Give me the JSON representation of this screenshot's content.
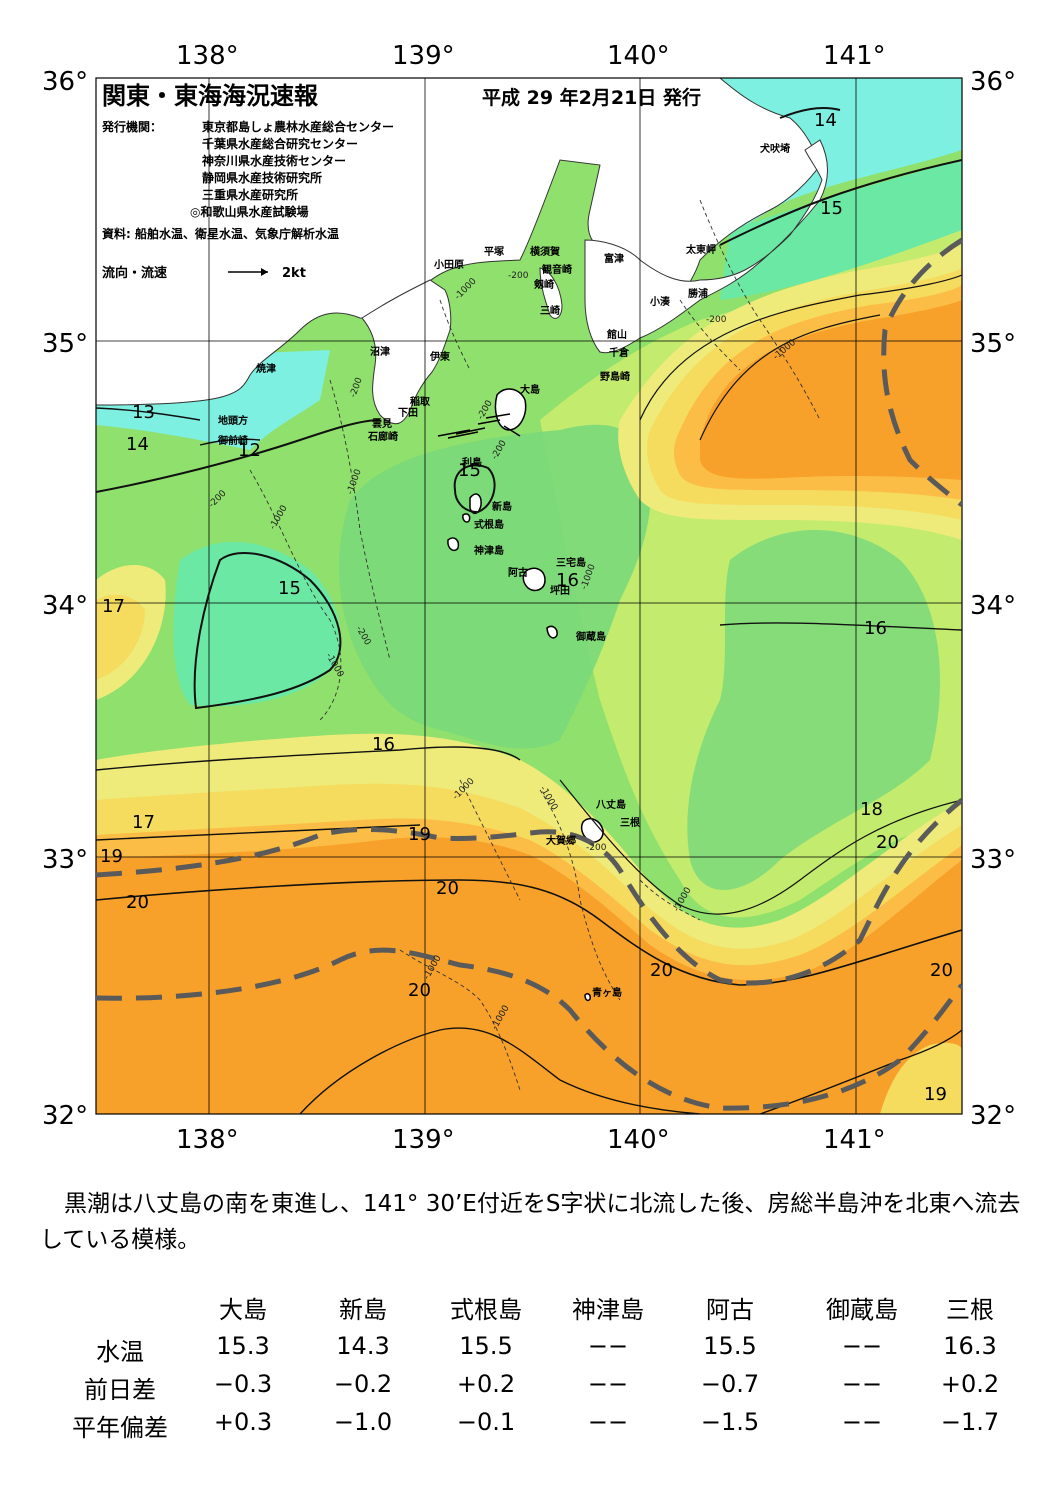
{
  "header": {
    "title": "関東・東海海況速報",
    "date": "平成 29 年2月21日 発行",
    "issuers_label": "発行機関：",
    "issuers": [
      "東京都島しょ農林水産総合センター",
      "千葉県水産総合研究センター",
      "神奈川県水産技術センター",
      "静岡県水産技術研究所",
      "三重県水産研究所",
      "◎和歌山県水産試験場"
    ],
    "sources": "資料: 船舶水温、衛星水温、気象庁解析水温",
    "legend_label": "流向・流速",
    "legend_speed": "2kt"
  },
  "axes": {
    "lon_labels": [
      "138°",
      "139°",
      "140°",
      "141°"
    ],
    "lat_labels": [
      "36°",
      "35°",
      "34°",
      "33°",
      "32°"
    ]
  },
  "colors": {
    "orange": "#f7a12b",
    "light_orange": "#fbbd45",
    "yellow": "#f5dc5e",
    "light_yellow": "#eeeb7a",
    "yellow_green": "#c3eb6e",
    "green": "#8fe06c",
    "mid_green": "#7ad97a",
    "teal_green": "#6ce8a5",
    "cyan": "#7ef0e2",
    "land": "#ffffff",
    "kuroshio_axis": "#5a5a5a"
  },
  "place_names": [
    "犬吠埼",
    "太東岬",
    "勝浦",
    "小湊",
    "富津",
    "横須賀",
    "観音崎",
    "平塚",
    "剱崎",
    "三崎",
    "小田原",
    "館山",
    "千倉",
    "野島崎",
    "沼津",
    "伊東",
    "焼津",
    "稲取",
    "下田",
    "雲見",
    "石廊崎",
    "地頭方",
    "御前崎",
    "大島",
    "利島",
    "新島",
    "式根島",
    "神津島",
    "三宅島",
    "阿古",
    "坪田",
    "御蔵島",
    "八丈島",
    "三根",
    "大賀郷",
    "青ヶ島"
  ],
  "isotherm_labels": [
    "14",
    "15",
    "13",
    "14",
    "12",
    "15",
    "15",
    "16",
    "17",
    "16",
    "16",
    "17",
    "18",
    "19",
    "19",
    "20",
    "20",
    "20",
    "20",
    "20",
    "20",
    "20",
    "19"
  ],
  "depth_labels": [
    "-200",
    "-1000"
  ],
  "summary": "黒潮は八丈島の南を東進し、141° 30’E付近をS字状に北流した後、房総半島沖を北東へ流去している模様。",
  "table": {
    "columns": [
      "大島",
      "新島",
      "式根島",
      "神津島",
      "阿古",
      "御蔵島",
      "三根"
    ],
    "rows": [
      {
        "label": "水温",
        "values": [
          "15.3",
          "14.3",
          "15.5",
          "−−",
          "15.5",
          "−−",
          "16.3"
        ]
      },
      {
        "label": "前日差",
        "values": [
          "−0.3",
          "−0.2",
          "+0.2",
          "−−",
          "−0.7",
          "−−",
          "+0.2"
        ]
      },
      {
        "label": "平年偏差",
        "values": [
          "+0.3",
          "−1.0",
          "−0.1",
          "−−",
          "−1.5",
          "−−",
          "−1.7"
        ]
      }
    ]
  }
}
